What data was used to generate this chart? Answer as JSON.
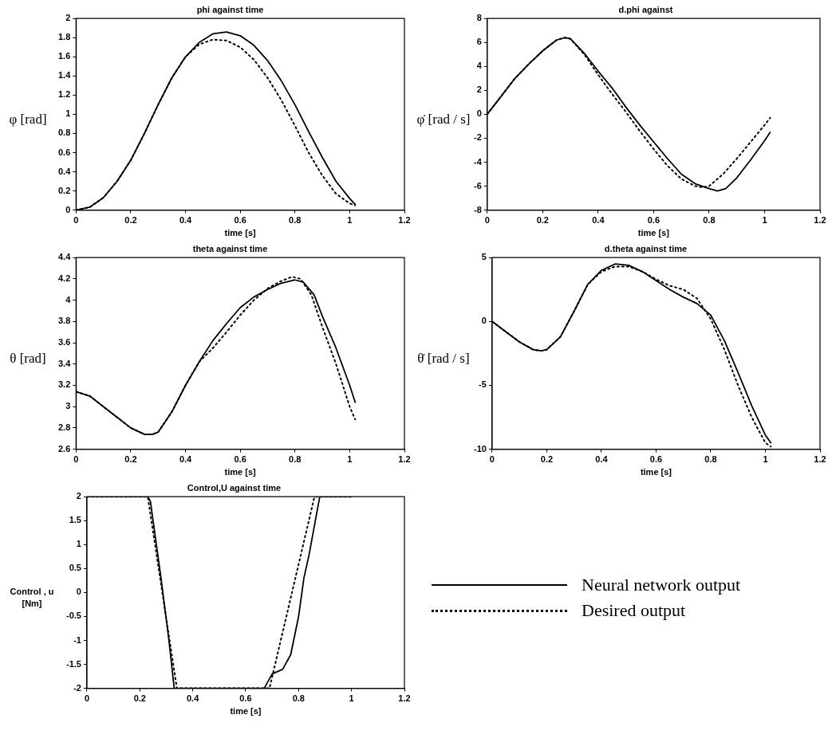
{
  "chart_data": [
    {
      "type": "line",
      "title": "phi against time",
      "xlabel": "time [s]",
      "ylabel": "φ [rad]",
      "xlim": [
        0,
        1.2
      ],
      "xticks": [
        0,
        0.2,
        0.4,
        0.6,
        0.8,
        1,
        1.2
      ],
      "ylim": [
        0,
        2
      ],
      "yticks": [
        0,
        0.2,
        0.4,
        0.6,
        0.8,
        1,
        1.2,
        1.4,
        1.6,
        1.8,
        2
      ],
      "grid": false,
      "legend": false,
      "marker": "none",
      "series": [
        {
          "color": "#000000",
          "line_style": "solid",
          "x": [
            0,
            0.05,
            0.1,
            0.15,
            0.2,
            0.25,
            0.3,
            0.35,
            0.4,
            0.45,
            0.5,
            0.55,
            0.6,
            0.65,
            0.7,
            0.75,
            0.8,
            0.85,
            0.9,
            0.95,
            1.0,
            1.02
          ],
          "values": [
            0,
            0.03,
            0.13,
            0.3,
            0.52,
            0.8,
            1.1,
            1.38,
            1.6,
            1.75,
            1.84,
            1.86,
            1.82,
            1.72,
            1.56,
            1.35,
            1.1,
            0.82,
            0.55,
            0.3,
            0.12,
            0.06
          ]
        },
        {
          "color": "#000000",
          "line_style": "dotted",
          "x": [
            0,
            0.05,
            0.1,
            0.15,
            0.2,
            0.25,
            0.3,
            0.35,
            0.4,
            0.45,
            0.5,
            0.55,
            0.6,
            0.65,
            0.7,
            0.75,
            0.8,
            0.85,
            0.9,
            0.95,
            1.0,
            1.02
          ],
          "values": [
            0,
            0.03,
            0.13,
            0.3,
            0.52,
            0.8,
            1.1,
            1.38,
            1.6,
            1.73,
            1.78,
            1.77,
            1.7,
            1.57,
            1.38,
            1.15,
            0.88,
            0.6,
            0.36,
            0.17,
            0.07,
            0.05
          ]
        }
      ]
    },
    {
      "type": "line",
      "title": "d.phi against",
      "xlabel": "time [s]",
      "ylabel": "φ̇ [rad / s]",
      "xlim": [
        0,
        1.2
      ],
      "xticks": [
        0,
        0.2,
        0.4,
        0.6,
        0.8,
        1,
        1.2
      ],
      "ylim": [
        -8,
        8
      ],
      "yticks": [
        -8,
        -6,
        -4,
        -2,
        0,
        2,
        4,
        6,
        8
      ],
      "grid": false,
      "legend": false,
      "marker": "none",
      "series": [
        {
          "color": "#000000",
          "line_style": "solid",
          "x": [
            0,
            0.05,
            0.1,
            0.15,
            0.2,
            0.25,
            0.28,
            0.3,
            0.35,
            0.4,
            0.45,
            0.5,
            0.55,
            0.6,
            0.65,
            0.7,
            0.75,
            0.8,
            0.83,
            0.86,
            0.9,
            0.95,
            1.0,
            1.02
          ],
          "values": [
            0,
            1.5,
            3,
            4.2,
            5.3,
            6.2,
            6.4,
            6.3,
            5.1,
            3.6,
            2.2,
            0.6,
            -0.9,
            -2.3,
            -3.7,
            -5.0,
            -5.8,
            -6.2,
            -6.4,
            -6.2,
            -5.3,
            -3.8,
            -2.2,
            -1.5
          ]
        },
        {
          "color": "#000000",
          "line_style": "dotted",
          "x": [
            0,
            0.05,
            0.1,
            0.15,
            0.2,
            0.25,
            0.28,
            0.3,
            0.35,
            0.4,
            0.45,
            0.5,
            0.55,
            0.6,
            0.65,
            0.7,
            0.75,
            0.78,
            0.8,
            0.85,
            0.9,
            0.95,
            1.0,
            1.02
          ],
          "values": [
            0,
            1.5,
            3,
            4.2,
            5.3,
            6.2,
            6.4,
            6.3,
            5.0,
            3.3,
            1.7,
            0.2,
            -1.4,
            -2.9,
            -4.3,
            -5.4,
            -6.0,
            -6.1,
            -6.0,
            -5.0,
            -3.7,
            -2.3,
            -0.9,
            -0.3
          ]
        }
      ]
    },
    {
      "type": "line",
      "title": "theta against time",
      "xlabel": "time [s]",
      "ylabel": "θ [rad]",
      "xlim": [
        0,
        1.2
      ],
      "xticks": [
        0,
        0.2,
        0.4,
        0.6,
        0.8,
        1,
        1.2
      ],
      "ylim": [
        2.6,
        4.4
      ],
      "yticks": [
        2.6,
        2.8,
        3,
        3.2,
        3.4,
        3.6,
        3.8,
        4,
        4.2,
        4.4
      ],
      "grid": false,
      "legend": false,
      "marker": "none",
      "series": [
        {
          "color": "#000000",
          "line_style": "solid",
          "x": [
            0,
            0.05,
            0.1,
            0.15,
            0.2,
            0.25,
            0.28,
            0.3,
            0.35,
            0.4,
            0.45,
            0.5,
            0.55,
            0.6,
            0.65,
            0.7,
            0.75,
            0.8,
            0.83,
            0.87,
            0.9,
            0.95,
            1.0,
            1.02
          ],
          "values": [
            3.14,
            3.1,
            3.0,
            2.9,
            2.8,
            2.74,
            2.74,
            2.76,
            2.95,
            3.2,
            3.42,
            3.62,
            3.78,
            3.93,
            4.03,
            4.1,
            4.16,
            4.19,
            4.17,
            4.05,
            3.85,
            3.55,
            3.2,
            3.04
          ]
        },
        {
          "color": "#000000",
          "line_style": "dotted",
          "x": [
            0,
            0.05,
            0.1,
            0.15,
            0.2,
            0.25,
            0.28,
            0.3,
            0.35,
            0.4,
            0.45,
            0.5,
            0.55,
            0.6,
            0.65,
            0.7,
            0.75,
            0.79,
            0.82,
            0.86,
            0.9,
            0.95,
            1.0,
            1.02
          ],
          "values": [
            3.14,
            3.1,
            3.0,
            2.9,
            2.8,
            2.74,
            2.74,
            2.76,
            2.95,
            3.2,
            3.42,
            3.55,
            3.7,
            3.86,
            4.0,
            4.11,
            4.18,
            4.22,
            4.2,
            4.05,
            3.75,
            3.4,
            3.0,
            2.88
          ]
        }
      ]
    },
    {
      "type": "line",
      "title": "d.theta against time",
      "xlabel": "time [s]",
      "ylabel": "θ̇ [rad / s]",
      "xlim": [
        0,
        1.2
      ],
      "xticks": [
        0,
        0.2,
        0.4,
        0.6,
        0.8,
        1,
        1.2
      ],
      "ylim": [
        -10,
        5
      ],
      "yticks": [
        -10,
        -5,
        0,
        5
      ],
      "grid": false,
      "legend": false,
      "marker": "none",
      "series": [
        {
          "color": "#000000",
          "line_style": "solid",
          "x": [
            0,
            0.05,
            0.1,
            0.15,
            0.18,
            0.2,
            0.25,
            0.3,
            0.35,
            0.4,
            0.45,
            0.5,
            0.55,
            0.6,
            0.65,
            0.7,
            0.75,
            0.8,
            0.85,
            0.9,
            0.95,
            1.0,
            1.02
          ],
          "values": [
            0,
            -0.8,
            -1.6,
            -2.2,
            -2.3,
            -2.2,
            -1.2,
            0.8,
            2.9,
            4.0,
            4.5,
            4.4,
            3.9,
            3.2,
            2.5,
            1.9,
            1.4,
            0.5,
            -1.5,
            -4.0,
            -6.6,
            -8.9,
            -9.5
          ]
        },
        {
          "color": "#000000",
          "line_style": "dotted",
          "x": [
            0,
            0.05,
            0.1,
            0.15,
            0.18,
            0.2,
            0.25,
            0.3,
            0.35,
            0.4,
            0.45,
            0.5,
            0.55,
            0.6,
            0.65,
            0.7,
            0.75,
            0.8,
            0.85,
            0.9,
            0.95,
            1.0,
            1.02
          ],
          "values": [
            0,
            -0.8,
            -1.6,
            -2.2,
            -2.3,
            -2.2,
            -1.2,
            0.8,
            2.9,
            3.9,
            4.3,
            4.3,
            3.9,
            3.3,
            2.8,
            2.5,
            1.8,
            0.2,
            -2.2,
            -5.0,
            -7.5,
            -9.5,
            -9.8
          ]
        }
      ]
    },
    {
      "type": "line",
      "title": "Control,U against time",
      "xlabel": "time [s]",
      "ylabel": "Control , u [Nm]",
      "xlim": [
        0,
        1.2
      ],
      "xticks": [
        0,
        0.2,
        0.4,
        0.6,
        0.8,
        1,
        1.2
      ],
      "ylim": [
        -2,
        2
      ],
      "yticks": [
        -2,
        -1.5,
        -1,
        -0.5,
        0,
        0.5,
        1,
        1.5,
        2
      ],
      "grid": false,
      "legend": "right",
      "marker": "none",
      "series": [
        {
          "name": "Neural network output",
          "color": "#000000",
          "line_style": "solid",
          "x": [
            0,
            0.23,
            0.24,
            0.28,
            0.31,
            0.33,
            0.67,
            0.7,
            0.74,
            0.77,
            0.8,
            0.82,
            0.84,
            0.88,
            1.0
          ],
          "values": [
            2,
            2,
            1.9,
            0.3,
            -1.0,
            -2,
            -2,
            -1.7,
            -1.6,
            -1.3,
            -0.5,
            0.3,
            0.8,
            2,
            2
          ]
        },
        {
          "name": "Desired output",
          "color": "#000000",
          "line_style": "dotted",
          "x": [
            0,
            0.23,
            0.34,
            0.69,
            0.86,
            1.0
          ],
          "values": [
            2,
            2,
            -2,
            -2,
            2,
            2
          ]
        }
      ]
    }
  ]
}
